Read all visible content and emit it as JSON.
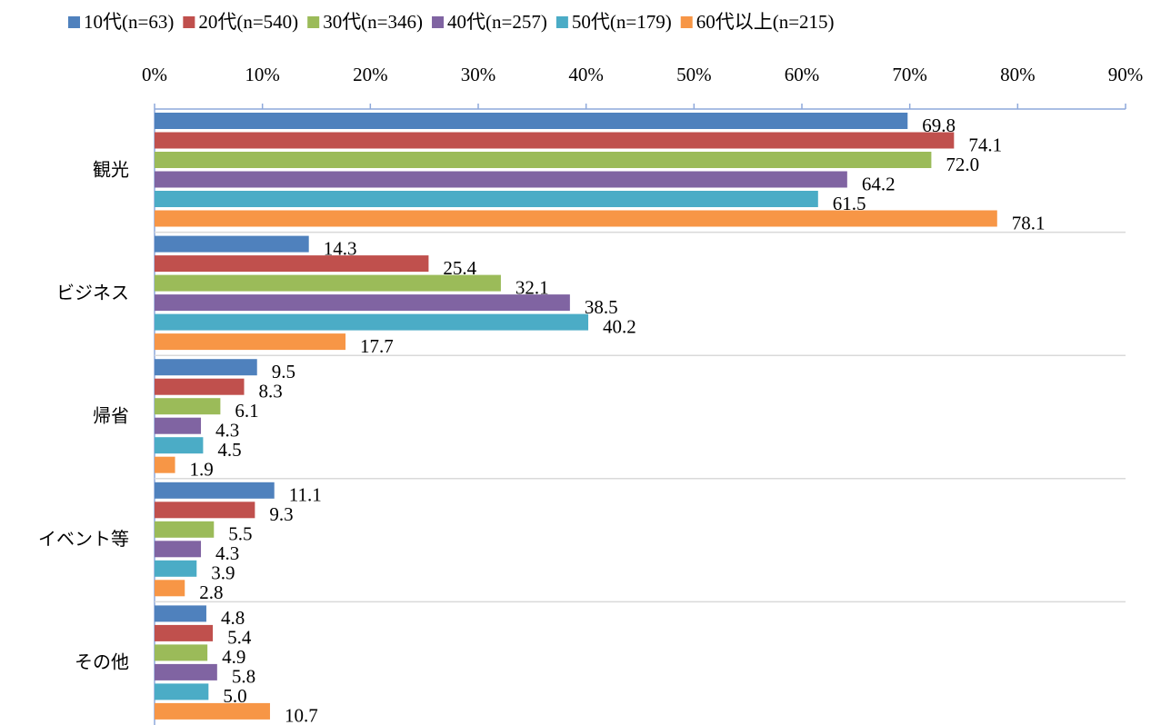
{
  "chart_data": {
    "type": "hbar",
    "categories": [
      "観光",
      "ビジネス",
      "帰省",
      "イベント等",
      "その他"
    ],
    "series": [
      {
        "name": "10代(n=63)",
        "color": "#4f81bd",
        "values": [
          69.8,
          14.3,
          9.5,
          11.1,
          4.8
        ],
        "value_labels": [
          "69.8",
          "14.3",
          "9.5",
          "11.1",
          "4.8"
        ]
      },
      {
        "name": "20代(n=540)",
        "color": "#c0504d",
        "values": [
          74.1,
          25.4,
          8.3,
          9.3,
          5.4
        ],
        "value_labels": [
          "74.1",
          "25.4",
          "8.3",
          "9.3",
          "5.4"
        ]
      },
      {
        "name": "30代(n=346)",
        "color": "#9bbb59",
        "values": [
          72.0,
          32.1,
          6.1,
          5.5,
          4.9
        ],
        "value_labels": [
          "72.0",
          "32.1",
          "6.1",
          "5.5",
          "4.9"
        ]
      },
      {
        "name": "40代(n=257)",
        "color": "#8064a2",
        "values": [
          64.2,
          38.5,
          4.3,
          4.3,
          5.8
        ],
        "value_labels": [
          "64.2",
          "38.5",
          "4.3",
          "4.3",
          "5.8"
        ]
      },
      {
        "name": "50代(n=179)",
        "color": "#4bacc6",
        "values": [
          61.5,
          40.2,
          4.5,
          3.9,
          5.0
        ],
        "value_labels": [
          "61.5",
          "40.2",
          "4.5",
          "3.9",
          "5.0"
        ]
      },
      {
        "name": "60代以上(n=215)",
        "color": "#f79646",
        "values": [
          78.1,
          17.7,
          1.9,
          2.8,
          10.7
        ],
        "value_labels": [
          "78.1",
          "17.7",
          "1.9",
          "2.8",
          "10.7"
        ]
      }
    ],
    "xlim": [
      0,
      90
    ],
    "xticks": [
      {
        "value": 0,
        "label": "0%"
      },
      {
        "value": 10,
        "label": "10%"
      },
      {
        "value": 20,
        "label": "20%"
      },
      {
        "value": 30,
        "label": "30%"
      },
      {
        "value": 40,
        "label": "40%"
      },
      {
        "value": 50,
        "label": "50%"
      },
      {
        "value": 60,
        "label": "60%"
      },
      {
        "value": 70,
        "label": "70%"
      },
      {
        "value": 80,
        "label": "80%"
      },
      {
        "value": 90,
        "label": "90%"
      }
    ],
    "legend": "top"
  }
}
